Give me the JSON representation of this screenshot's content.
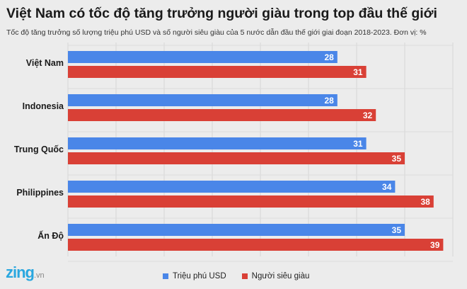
{
  "title": "Việt Nam có tốc độ tăng trưởng người giàu trong top đầu thế giới",
  "subtitle": "Tốc độ tăng trưởng số lượng triệu phú USD và số người siêu giàu của 5 nước dẫn đầu thế giới giai đoạn 2018-2023. Đơn vị: %",
  "logo": {
    "main": "zing",
    "suffix": ".vn"
  },
  "chart_data": {
    "type": "bar",
    "orientation": "horizontal",
    "categories": [
      "Việt Nam",
      "Indonesia",
      "Trung Quốc",
      "Philippines",
      "Ấn Độ"
    ],
    "series": [
      {
        "name": "Triệu phú USD",
        "color": "#4a86e8",
        "values": [
          28,
          28,
          31,
          34,
          35
        ]
      },
      {
        "name": "Người siêu giàu",
        "color": "#d94036",
        "values": [
          31,
          32,
          35,
          38,
          39
        ]
      }
    ],
    "title": "Việt Nam có tốc độ tăng trưởng người giàu trong top đầu thế giới",
    "xlim": [
      0,
      40
    ],
    "grid": true,
    "legend": "bottom"
  }
}
